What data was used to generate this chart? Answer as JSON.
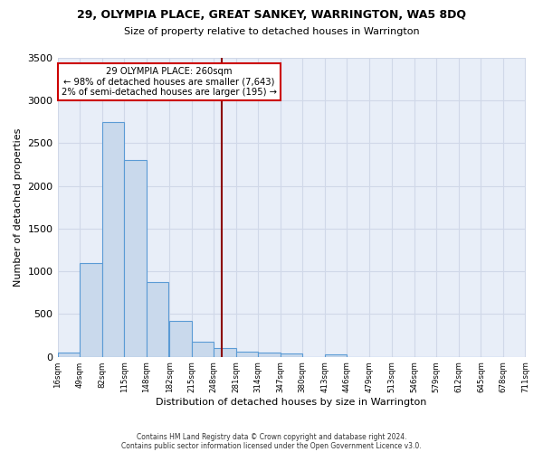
{
  "title": "29, OLYMPIA PLACE, GREAT SANKEY, WARRINGTON, WA5 8DQ",
  "subtitle": "Size of property relative to detached houses in Warrington",
  "xlabel": "Distribution of detached houses by size in Warrington",
  "ylabel": "Number of detached properties",
  "bar_color": "#c9d9ec",
  "bar_edge_color": "#5b9bd5",
  "background_color": "#e8eef8",
  "grid_color": "#d0d8e8",
  "bins": [
    16,
    49,
    82,
    115,
    148,
    182,
    215,
    248,
    281,
    314,
    347,
    380,
    413,
    446,
    479,
    513,
    546,
    579,
    612,
    645,
    678
  ],
  "counts": [
    50,
    1100,
    2750,
    2300,
    880,
    420,
    175,
    100,
    60,
    50,
    40,
    0,
    30,
    0,
    0,
    0,
    0,
    0,
    0,
    0
  ],
  "property_size": 260,
  "red_line_color": "#8b0000",
  "annotation_text": "29 OLYMPIA PLACE: 260sqm\n← 98% of detached houses are smaller (7,643)\n2% of semi-detached houses are larger (195) →",
  "annotation_box_color": "#ffffff",
  "annotation_border_color": "#cc0000",
  "ylim": [
    0,
    3500
  ],
  "yticks": [
    0,
    500,
    1000,
    1500,
    2000,
    2500,
    3000,
    3500
  ],
  "footnote1": "Contains HM Land Registry data © Crown copyright and database right 2024.",
  "footnote2": "Contains public sector information licensed under the Open Government Licence v3.0."
}
